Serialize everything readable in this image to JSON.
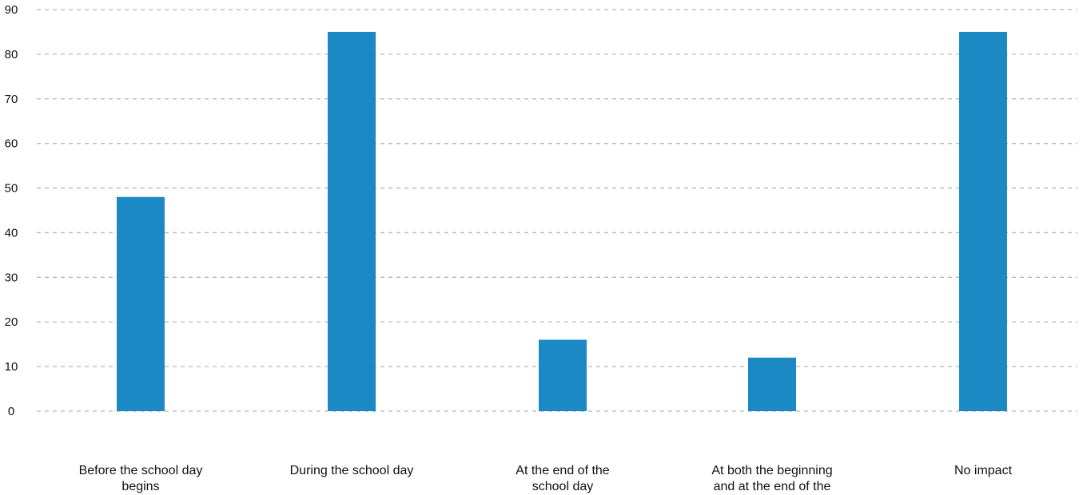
{
  "chart_data": {
    "type": "bar",
    "title": "",
    "xlabel": "",
    "ylabel": "",
    "ylim": [
      0,
      90
    ],
    "yticks": [
      0,
      10,
      20,
      30,
      40,
      50,
      60,
      70,
      80,
      90
    ],
    "grid": true,
    "categories": [
      [
        "Before the school day",
        "begins"
      ],
      [
        "During the school day"
      ],
      [
        "At the end of the",
        "school day"
      ],
      [
        "At both the beginning",
        "and at the end of the"
      ],
      [
        "No impact"
      ]
    ],
    "values": [
      48,
      85,
      16,
      12,
      85
    ],
    "bar_color": "#1a89c4",
    "grid_color": "#b5b5b5"
  }
}
